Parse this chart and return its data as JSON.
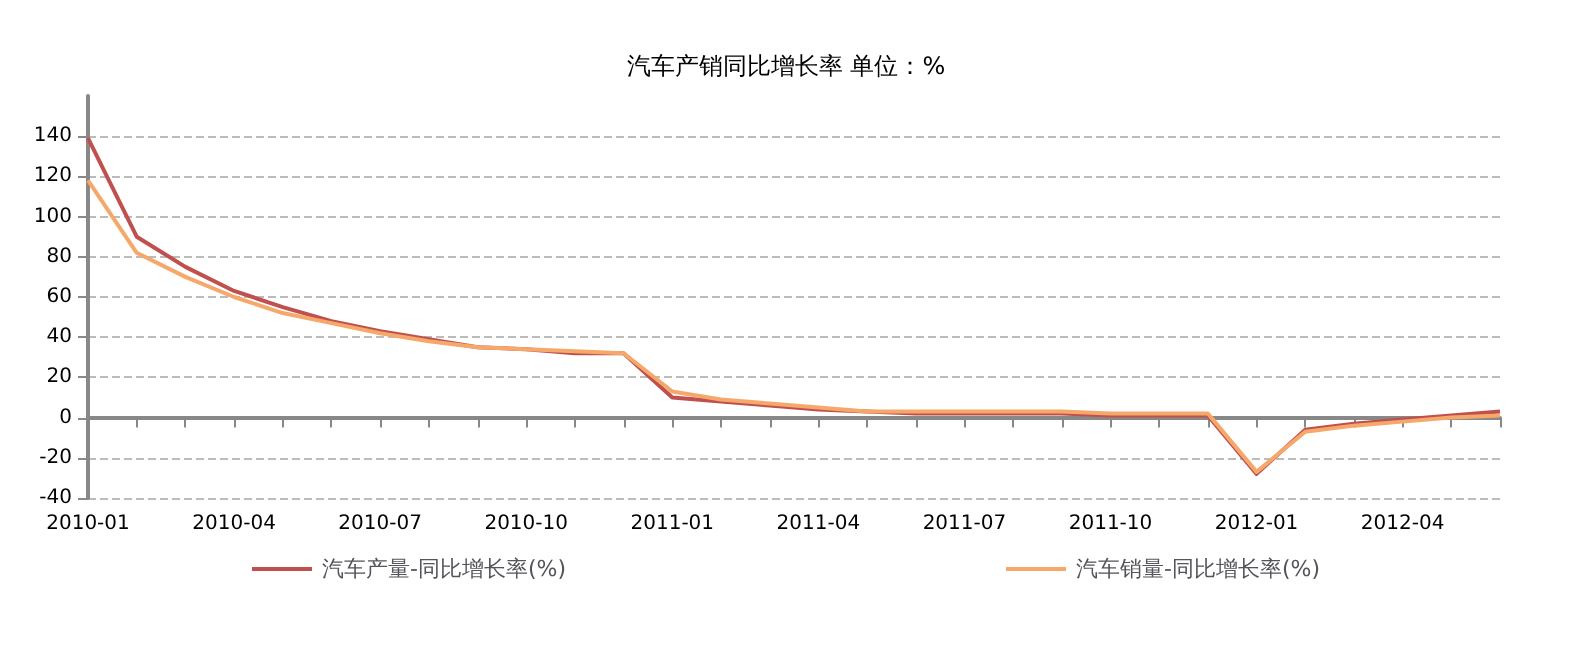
{
  "chart_data": {
    "type": "line",
    "title": "汽车产销同比增长率 单位：%",
    "categories": [
      "2010-01",
      null,
      null,
      "2010-04",
      null,
      null,
      "2010-07",
      null,
      null,
      "2010-10",
      null,
      null,
      "2011-01",
      null,
      null,
      "2011-04",
      null,
      null,
      "2011-07",
      null,
      null,
      "2011-10",
      null,
      null,
      "2012-01",
      null,
      null,
      "2012-04",
      null,
      null
    ],
    "series": [
      {
        "name": "汽车产量-同比增长率(%)",
        "color": "#c0504d",
        "values": [
          139,
          90,
          75,
          63,
          55,
          48,
          43,
          39,
          35,
          34,
          32,
          32,
          10,
          8,
          6,
          4,
          3,
          2,
          2,
          2,
          2,
          1,
          1,
          1,
          -28,
          -6,
          -3,
          -1,
          1,
          3
        ]
      },
      {
        "name": "汽车销量-同比增长率(%)",
        "color": "#f5a86a",
        "values": [
          118,
          82,
          70,
          60,
          52,
          47,
          42,
          38,
          35,
          34,
          33,
          32,
          13,
          9,
          7,
          5,
          3,
          3,
          3,
          3,
          3,
          2,
          2,
          2,
          -27,
          -7,
          -4,
          -2,
          0,
          1
        ]
      }
    ],
    "ylim": [
      -40,
      160
    ],
    "yticks": [
      -40,
      -20,
      0,
      20,
      40,
      60,
      80,
      100,
      120,
      140
    ],
    "grid": "y",
    "legend": "bottom",
    "marker": "none",
    "line_style": "solid"
  }
}
